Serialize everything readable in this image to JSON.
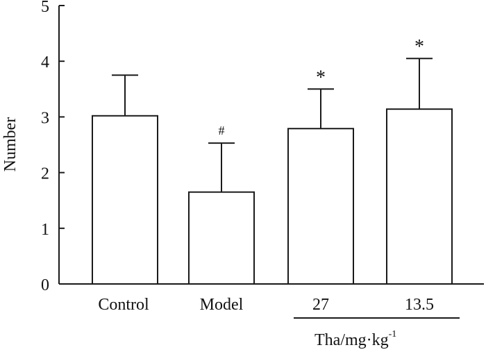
{
  "chart_data": {
    "type": "bar",
    "categories": [
      "Control",
      "Model",
      "27",
      "13.5"
    ],
    "values": [
      3.02,
      1.65,
      2.79,
      3.14
    ],
    "errors": [
      0.73,
      0.88,
      0.71,
      0.91
    ],
    "significance": [
      "",
      "#",
      "*",
      "*"
    ],
    "ylabel": "Number",
    "ylim": [
      0,
      5
    ],
    "yticks": [
      0,
      1,
      2,
      3,
      4,
      5
    ],
    "group": {
      "label": "Tha/mg·kg",
      "label_superscript": "-1",
      "categories": [
        "27",
        "13.5"
      ]
    },
    "grid": false,
    "legend": "none"
  }
}
